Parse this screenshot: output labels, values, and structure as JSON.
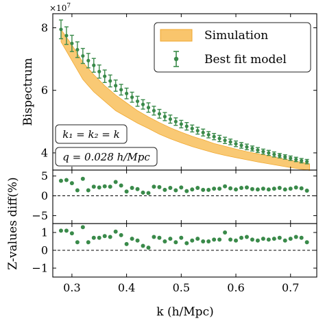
{
  "chart_data": [
    {
      "type": "line",
      "panel": "main",
      "ylabel": "Bispectrum",
      "y_multiplier_label": "×10",
      "y_multiplier_exponent": "7",
      "ylim": [
        3.45,
        8.45
      ],
      "yticks": [
        4,
        6,
        8
      ],
      "xlim": [
        0.265,
        0.748
      ],
      "legend": {
        "position": "top-right",
        "entries": [
          {
            "label": "Simulation",
            "kind": "band",
            "color": "#f8bf5c"
          },
          {
            "label": "Best fit model",
            "kind": "errorbar-point",
            "color": "#3a8a4a"
          }
        ]
      },
      "annotations": [
        "k₁ = k₂ = k",
        "q = 0.028 h/Mpc"
      ],
      "series": [
        {
          "name": "Simulation",
          "kind": "band",
          "x": [
            0.28,
            0.3,
            0.32,
            0.34,
            0.36,
            0.38,
            0.4,
            0.42,
            0.44,
            0.46,
            0.48,
            0.5,
            0.52,
            0.54,
            0.56,
            0.58,
            0.6,
            0.62,
            0.64,
            0.66,
            0.68,
            0.7,
            0.72,
            0.735
          ],
          "lower": [
            7.55,
            6.95,
            6.35,
            5.95,
            5.65,
            5.35,
            5.15,
            4.95,
            4.78,
            4.6,
            4.45,
            4.32,
            4.2,
            4.1,
            4.0,
            3.92,
            3.85,
            3.78,
            3.71,
            3.65,
            3.59,
            3.53,
            3.48,
            3.44
          ],
          "upper": [
            7.95,
            7.45,
            6.9,
            6.5,
            6.15,
            5.85,
            5.6,
            5.35,
            5.15,
            4.97,
            4.8,
            4.66,
            4.53,
            4.42,
            4.3,
            4.21,
            4.12,
            4.04,
            3.97,
            3.9,
            3.83,
            3.76,
            3.7,
            3.65
          ]
        },
        {
          "name": "Best fit model",
          "kind": "errorbar",
          "x": [
            0.28,
            0.29,
            0.3,
            0.31,
            0.32,
            0.33,
            0.34,
            0.35,
            0.36,
            0.37,
            0.38,
            0.39,
            0.4,
            0.41,
            0.42,
            0.43,
            0.44,
            0.45,
            0.46,
            0.47,
            0.48,
            0.49,
            0.5,
            0.51,
            0.52,
            0.53,
            0.54,
            0.55,
            0.56,
            0.57,
            0.58,
            0.59,
            0.6,
            0.61,
            0.62,
            0.63,
            0.64,
            0.65,
            0.66,
            0.67,
            0.68,
            0.69,
            0.7,
            0.71,
            0.72,
            0.73
          ],
          "y": [
            7.95,
            7.75,
            7.5,
            7.3,
            7.1,
            6.95,
            6.8,
            6.6,
            6.45,
            6.3,
            6.15,
            6.02,
            5.9,
            5.78,
            5.65,
            5.55,
            5.45,
            5.35,
            5.25,
            5.16,
            5.08,
            5.0,
            4.92,
            4.85,
            4.78,
            4.71,
            4.65,
            4.58,
            4.52,
            4.46,
            4.4,
            4.35,
            4.29,
            4.24,
            4.19,
            4.14,
            4.09,
            4.04,
            4.0,
            3.95,
            3.91,
            3.87,
            3.83,
            3.79,
            3.75,
            3.72
          ],
          "yerr": [
            0.3,
            0.28,
            0.26,
            0.25,
            0.24,
            0.23,
            0.22,
            0.21,
            0.2,
            0.19,
            0.18,
            0.17,
            0.17,
            0.16,
            0.16,
            0.15,
            0.15,
            0.14,
            0.14,
            0.13,
            0.13,
            0.12,
            0.12,
            0.12,
            0.11,
            0.11,
            0.11,
            0.1,
            0.1,
            0.1,
            0.1,
            0.09,
            0.09,
            0.09,
            0.09,
            0.08,
            0.08,
            0.08,
            0.08,
            0.08,
            0.07,
            0.07,
            0.07,
            0.07,
            0.07,
            0.07
          ]
        }
      ]
    },
    {
      "type": "scatter",
      "panel": "diff",
      "ylabel": "diff(%)",
      "ylim": [
        -7,
        6.5
      ],
      "yticks": [
        -5,
        0,
        5
      ],
      "reference_line": 0,
      "series": [
        {
          "name": "",
          "x": [
            0.28,
            0.29,
            0.3,
            0.31,
            0.32,
            0.33,
            0.34,
            0.35,
            0.36,
            0.37,
            0.38,
            0.39,
            0.4,
            0.41,
            0.42,
            0.43,
            0.44,
            0.45,
            0.46,
            0.47,
            0.48,
            0.49,
            0.5,
            0.51,
            0.52,
            0.53,
            0.54,
            0.55,
            0.56,
            0.57,
            0.58,
            0.59,
            0.6,
            0.61,
            0.62,
            0.63,
            0.64,
            0.65,
            0.66,
            0.67,
            0.68,
            0.69,
            0.7,
            0.71,
            0.72,
            0.73
          ],
          "y": [
            3.8,
            4.0,
            3.2,
            1.4,
            4.3,
            1.4,
            2.3,
            2.1,
            2.4,
            2.3,
            3.5,
            2.6,
            1.1,
            2.0,
            1.7,
            0.8,
            0.7,
            2.3,
            2.2,
            1.5,
            2.0,
            1.4,
            2.1,
            1.2,
            1.6,
            2.0,
            1.5,
            1.5,
            1.8,
            1.8,
            2.4,
            1.9,
            1.6,
            2.0,
            2.1,
            1.7,
            1.6,
            1.8,
            1.6,
            1.8,
            2.0,
            1.6,
            1.8,
            2.1,
            1.9,
            1.3
          ]
        }
      ]
    },
    {
      "type": "scatter",
      "panel": "zvalues",
      "ylabel": "Z-values",
      "ylim": [
        -1.5,
        1.5
      ],
      "yticks": [
        -1,
        0,
        1
      ],
      "reference_line": 0,
      "xlabel": "k (h/Mpc)",
      "xticks": [
        0.3,
        0.4,
        0.5,
        0.6,
        0.7
      ],
      "series": [
        {
          "name": "",
          "x": [
            0.28,
            0.29,
            0.3,
            0.31,
            0.32,
            0.33,
            0.34,
            0.35,
            0.36,
            0.37,
            0.38,
            0.39,
            0.4,
            0.41,
            0.42,
            0.43,
            0.44,
            0.45,
            0.46,
            0.47,
            0.48,
            0.49,
            0.5,
            0.51,
            0.52,
            0.53,
            0.54,
            0.55,
            0.56,
            0.57,
            0.58,
            0.59,
            0.6,
            0.61,
            0.62,
            0.63,
            0.64,
            0.65,
            0.66,
            0.67,
            0.68,
            0.69,
            0.7,
            0.71,
            0.72,
            0.73
          ],
          "y": [
            1.1,
            1.1,
            0.95,
            0.45,
            1.3,
            0.45,
            0.7,
            0.7,
            0.8,
            0.75,
            1.05,
            0.85,
            0.35,
            0.65,
            0.55,
            0.25,
            0.15,
            0.75,
            0.7,
            0.5,
            0.65,
            0.45,
            0.7,
            0.4,
            0.55,
            0.65,
            0.5,
            0.5,
            0.6,
            0.6,
            1.0,
            0.6,
            0.55,
            0.7,
            0.75,
            0.6,
            0.55,
            0.65,
            0.6,
            0.65,
            0.7,
            0.55,
            0.65,
            0.75,
            0.7,
            0.45
          ]
        }
      ]
    }
  ]
}
